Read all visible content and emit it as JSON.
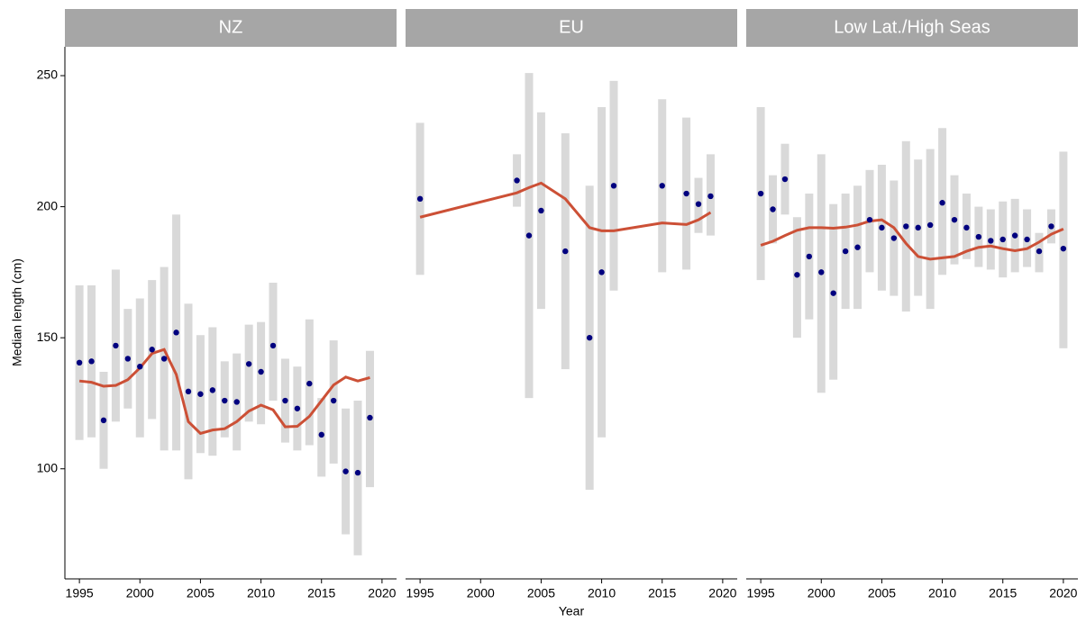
{
  "chart_data": {
    "type": "range-line",
    "x_label": "Year",
    "y_label": "Median length (cm)",
    "ylim": [
      58,
      261
    ],
    "yticks": [
      100,
      150,
      200,
      250
    ],
    "xlim": [
      1993.8,
      2021.2
    ],
    "xticks": [
      1995,
      2000,
      2005,
      2010,
      2015,
      2020
    ],
    "range_color": "#d9d9d9",
    "point_color": "#00007f",
    "trend_color": "#cc5036",
    "strip_color": "#a6a6a6",
    "panels": [
      {
        "title": "NZ",
        "x": [
          1995,
          1996,
          1997,
          1998,
          1999,
          2000,
          2001,
          2002,
          2003,
          2004,
          2005,
          2006,
          2007,
          2008,
          2009,
          2010,
          2011,
          2012,
          2013,
          2014,
          2015,
          2016,
          2017,
          2018,
          2019
        ],
        "values": [
          140.5,
          141,
          118.5,
          147,
          142,
          139,
          145.5,
          142,
          152,
          129.5,
          128.5,
          130,
          126,
          125.5,
          140,
          137,
          147,
          126,
          123,
          132.5,
          113,
          126,
          99,
          98.5,
          119.5
        ],
        "low": [
          111,
          112,
          100,
          118,
          123,
          112,
          119,
          107,
          107,
          96,
          106,
          105,
          112,
          107,
          118,
          117,
          126,
          110,
          107,
          109,
          97,
          102,
          75,
          67,
          93
        ],
        "high": [
          170,
          170,
          137,
          176,
          161,
          165,
          172,
          177,
          197,
          163,
          151,
          154,
          141,
          144,
          155,
          156,
          171,
          142,
          139,
          157,
          127,
          149,
          123,
          126,
          145
        ],
        "trend": [
          133.5,
          133,
          131.5,
          131.8,
          134,
          138.5,
          144,
          145.5,
          136,
          118,
          113.5,
          114.8,
          115.3,
          118,
          122,
          124.3,
          122.5,
          116,
          116.2,
          120,
          126,
          132,
          135,
          133.5,
          134.8
        ]
      },
      {
        "title": "EU",
        "x": [
          1995,
          2003,
          2004,
          2005,
          2007,
          2009,
          2010,
          2011,
          2015,
          2017,
          2018,
          2019
        ],
        "values": [
          203,
          210,
          189,
          198.5,
          183,
          150,
          175,
          208,
          208,
          205,
          201,
          204
        ],
        "low": [
          174,
          200,
          127,
          161,
          138,
          92,
          112,
          168,
          175,
          176,
          190,
          189
        ],
        "high": [
          232,
          220,
          251,
          236,
          228,
          208,
          238,
          248,
          241,
          234,
          211,
          220
        ],
        "trend": [
          196,
          205.3,
          207.3,
          209,
          203,
          192,
          190.8,
          190.8,
          193.8,
          193.2,
          195,
          197.8
        ]
      },
      {
        "title": "Low Lat./High Seas",
        "x": [
          1995,
          1996,
          1997,
          1998,
          1999,
          2000,
          2001,
          2002,
          2003,
          2004,
          2005,
          2006,
          2007,
          2008,
          2009,
          2010,
          2011,
          2012,
          2013,
          2014,
          2015,
          2016,
          2017,
          2018,
          2019,
          2020
        ],
        "values": [
          205,
          199,
          210.5,
          174,
          181,
          175,
          167,
          183,
          184.5,
          195,
          192,
          188,
          192.5,
          192,
          193,
          201.5,
          195,
          192,
          188.5,
          187,
          187.5,
          189,
          187.5,
          183,
          192.5,
          184
        ],
        "low": [
          172,
          186,
          197,
          150,
          157,
          129,
          134,
          161,
          161,
          175,
          168,
          166,
          160,
          166,
          161,
          174,
          178,
          180,
          177,
          176,
          173,
          175,
          177,
          175,
          186,
          146
        ],
        "high": [
          238,
          212,
          224,
          196,
          205,
          220,
          201,
          205,
          208,
          214,
          216,
          210,
          225,
          218,
          222,
          230,
          212,
          205,
          200,
          199,
          202,
          203,
          199,
          190,
          199,
          221
        ],
        "trend": [
          185.3,
          186.8,
          189,
          191,
          192,
          192,
          191.8,
          192.2,
          193,
          194.5,
          195,
          192,
          186,
          181,
          180,
          180.5,
          181,
          183,
          184.5,
          185,
          184,
          183.2,
          184,
          186.5,
          189.5,
          191.5
        ]
      }
    ]
  }
}
